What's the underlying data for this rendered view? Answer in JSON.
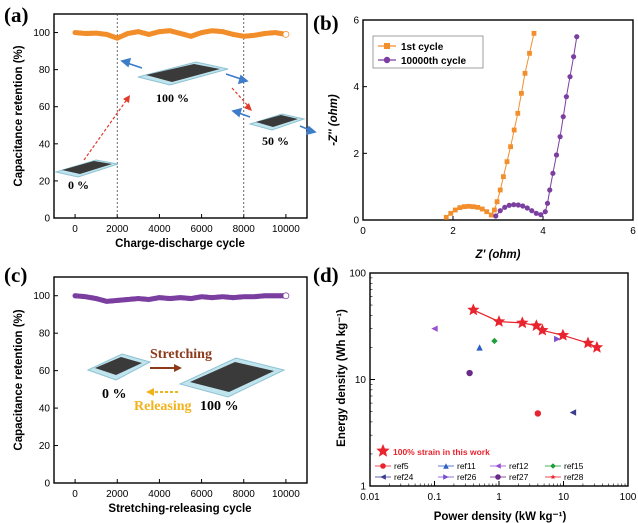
{
  "panels": {
    "a": {
      "label": "(a)",
      "pct0": "0 %",
      "pct100": "100 %",
      "pct50": "50 %"
    },
    "b": {
      "label": "(b)"
    },
    "c": {
      "label": "(c)",
      "stretch": "Stretching",
      "release": "Releasing",
      "pct0": "0 %",
      "pct100": "100 %"
    },
    "d": {
      "label": "(d)"
    }
  },
  "colors": {
    "orange": "#f28e2b",
    "purple": "#7b3fa0",
    "red": "#e8242e",
    "cyan": "#9fd8e8",
    "darkgray": "#3a3a3a"
  },
  "chart_data": [
    {
      "id": "a",
      "type": "scatter",
      "title": "",
      "xlabel": "Charge-discharge cycle",
      "ylabel": "Capacitance retention (%)",
      "xlim": [
        -1000,
        11000
      ],
      "ylim": [
        0,
        110
      ],
      "xticks": [
        "0",
        "2000",
        "4000",
        "6000",
        "8000",
        "10000"
      ],
      "yticks": [
        "0",
        "20",
        "40",
        "60",
        "80",
        "100"
      ],
      "vlines": [
        2000,
        8000
      ],
      "series": [
        {
          "color": "#f28e2b",
          "x": [
            0,
            500,
            1000,
            1500,
            2000,
            2500,
            3000,
            3500,
            4000,
            4500,
            5000,
            5500,
            6000,
            6500,
            7000,
            7500,
            8000,
            8500,
            9000,
            9500,
            10000
          ],
          "y": [
            100,
            99.5,
            99.7,
            99,
            97,
            99.5,
            100.5,
            99,
            100.5,
            101,
            99.5,
            98,
            100,
            101,
            100.5,
            99,
            98,
            98.5,
            99.5,
            100,
            99
          ]
        }
      ]
    },
    {
      "id": "b",
      "type": "scatter",
      "title": "",
      "xlabel": "Z' (ohm)",
      "ylabel": "-Z'' (ohm)",
      "xlim": [
        0,
        6
      ],
      "ylim": [
        0,
        6
      ],
      "xticks": [
        "0",
        "2",
        "4",
        "6"
      ],
      "yticks": [
        "0",
        "2",
        "4",
        "6"
      ],
      "legend": "top-left",
      "series": [
        {
          "name": "1st cycle",
          "color": "#f28e2b",
          "marker": "square",
          "x": [
            1.85,
            1.95,
            2.05,
            2.15,
            2.25,
            2.35,
            2.45,
            2.55,
            2.65,
            2.75,
            2.85,
            2.92,
            2.98,
            3.05,
            3.12,
            3.2,
            3.28,
            3.36,
            3.44,
            3.52,
            3.6,
            3.7,
            3.8
          ],
          "y": [
            0.08,
            0.2,
            0.3,
            0.37,
            0.4,
            0.41,
            0.4,
            0.38,
            0.33,
            0.25,
            0.15,
            0.3,
            0.55,
            0.9,
            1.3,
            1.75,
            2.2,
            2.7,
            3.2,
            3.8,
            4.4,
            5.0,
            5.6
          ]
        },
        {
          "name": "10000th cycle",
          "color": "#7b3fa0",
          "marker": "circle",
          "x": [
            2.95,
            3.05,
            3.15,
            3.25,
            3.35,
            3.45,
            3.55,
            3.65,
            3.75,
            3.85,
            3.95,
            4.05,
            4.1,
            4.15,
            4.22,
            4.3,
            4.38,
            4.45,
            4.52,
            4.6,
            4.68,
            4.75
          ],
          "y": [
            0.12,
            0.28,
            0.38,
            0.44,
            0.46,
            0.45,
            0.42,
            0.36,
            0.28,
            0.2,
            0.16,
            0.25,
            0.5,
            0.9,
            1.4,
            1.95,
            2.5,
            3.1,
            3.7,
            4.3,
            4.9,
            5.5
          ]
        }
      ]
    },
    {
      "id": "c",
      "type": "scatter",
      "title": "",
      "xlabel": "Stretching-releasing cycle",
      "ylabel": "Capacitance retention (%)",
      "xlim": [
        -1000,
        11000
      ],
      "ylim": [
        0,
        110
      ],
      "xticks": [
        "0",
        "2000",
        "4000",
        "6000",
        "8000",
        "10000"
      ],
      "yticks": [
        "0",
        "20",
        "40",
        "60",
        "80",
        "100"
      ],
      "series": [
        {
          "color": "#7b3fa0",
          "x": [
            0,
            500,
            1000,
            1500,
            2000,
            2500,
            3000,
            3500,
            4000,
            4500,
            5000,
            5500,
            6000,
            6500,
            7000,
            7500,
            8000,
            8500,
            9000,
            9500,
            10000
          ],
          "y": [
            100,
            99.5,
            98.5,
            97,
            97.5,
            98,
            98.5,
            98,
            99,
            98.5,
            99,
            98.5,
            99.5,
            99,
            99.5,
            99,
            99.5,
            99.5,
            100,
            100,
            100
          ]
        }
      ]
    },
    {
      "id": "d",
      "type": "scatter",
      "title": "",
      "xlabel": "Power density (kW kg⁻¹)",
      "ylabel": "Energy density (Wh kg⁻¹)",
      "xscale": "log",
      "yscale": "log",
      "xlim": [
        0.01,
        100
      ],
      "ylim": [
        1,
        100
      ],
      "xticks": [
        "0.01",
        "0.1",
        "1",
        "10",
        "100"
      ],
      "yticks": [
        "1",
        "10",
        "100"
      ],
      "legend": "bottom-left",
      "main": {
        "name": "100% strain in this work",
        "color": "#e8242e",
        "marker": "star",
        "x": [
          0.4,
          1.0,
          2.3,
          3.8,
          4.7,
          9.8,
          24.0,
          33.0
        ],
        "y": [
          45,
          35,
          34,
          32,
          29,
          26,
          22,
          20
        ]
      },
      "refs": [
        {
          "name": "ref5",
          "color": "#e8242e",
          "marker": "circle",
          "x": 4.0,
          "y": 4.8
        },
        {
          "name": "ref11",
          "color": "#2c5fc4",
          "marker": "triangle-up",
          "x": 0.5,
          "y": 20
        },
        {
          "name": "ref12",
          "color": "#9b4fd0",
          "marker": "triangle-left",
          "x": 0.1,
          "y": 30
        },
        {
          "name": "ref15",
          "color": "#1f9e3a",
          "marker": "diamond",
          "x": 0.85,
          "y": 23
        },
        {
          "name": "ref24",
          "color": "#3b3b8f",
          "marker": "triangle-left",
          "x": 14.0,
          "y": 4.9
        },
        {
          "name": "ref26",
          "color": "#7a4fcf",
          "marker": "triangle-right",
          "x": 8.0,
          "y": 24
        },
        {
          "name": "ref27",
          "color": "#6a2a8a",
          "marker": "circle",
          "x": 0.35,
          "y": 11.5
        },
        {
          "name": "ref28",
          "color": "#e8242e",
          "marker": "star-small",
          "x": null,
          "y": null
        }
      ]
    }
  ]
}
